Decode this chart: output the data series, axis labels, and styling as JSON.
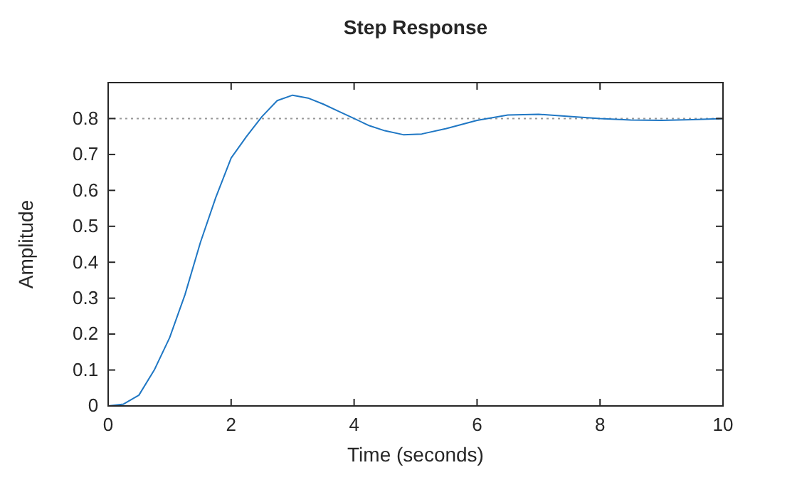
{
  "chart_data": {
    "type": "line",
    "title": "Step Response",
    "xlabel": "Time (seconds)",
    "ylabel": "Amplitude",
    "xlim": [
      0,
      10
    ],
    "ylim": [
      0,
      0.9
    ],
    "xticks": [
      0,
      2,
      4,
      6,
      8,
      10
    ],
    "yticks": [
      0,
      0.1,
      0.2,
      0.3,
      0.4,
      0.5,
      0.6,
      0.7,
      0.8
    ],
    "ref_lines": [
      {
        "axis": "y",
        "value": 0.8,
        "color": "#999999",
        "line_style": "dotted"
      }
    ],
    "series": [
      {
        "color": "#1f77c4",
        "x": [
          0,
          0.25,
          0.5,
          0.75,
          1,
          1.25,
          1.5,
          1.75,
          2,
          2.25,
          2.5,
          2.75,
          3,
          3.25,
          3.5,
          3.75,
          4,
          4.25,
          4.5,
          4.8,
          5.1,
          5.5,
          6,
          6.5,
          7,
          7.5,
          8,
          8.5,
          9,
          9.5,
          10
        ],
        "values": [
          0,
          0.005,
          0.03,
          0.1,
          0.19,
          0.31,
          0.455,
          0.58,
          0.69,
          0.75,
          0.805,
          0.85,
          0.865,
          0.857,
          0.84,
          0.82,
          0.8,
          0.78,
          0.766,
          0.755,
          0.757,
          0.772,
          0.795,
          0.81,
          0.812,
          0.806,
          0.8,
          0.796,
          0.795,
          0.797,
          0.8
        ]
      }
    ]
  }
}
